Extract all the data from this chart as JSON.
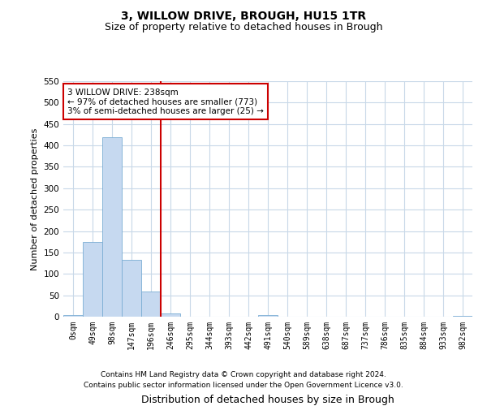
{
  "title_line1": "3, WILLOW DRIVE, BROUGH, HU15 1TR",
  "title_line2": "Size of property relative to detached houses in Brough",
  "xlabel": "Distribution of detached houses by size in Brough",
  "ylabel": "Number of detached properties",
  "bin_labels": [
    "0sqm",
    "49sqm",
    "98sqm",
    "147sqm",
    "196sqm",
    "246sqm",
    "295sqm",
    "344sqm",
    "393sqm",
    "442sqm",
    "491sqm",
    "540sqm",
    "589sqm",
    "638sqm",
    "687sqm",
    "737sqm",
    "786sqm",
    "835sqm",
    "884sqm",
    "933sqm",
    "982sqm"
  ],
  "bar_heights": [
    4,
    175,
    420,
    132,
    58,
    8,
    0,
    0,
    0,
    0,
    3,
    0,
    0,
    0,
    0,
    0,
    0,
    0,
    0,
    0,
    2
  ],
  "bar_color": "#c6d9f0",
  "bar_edge_color": "#7badd4",
  "property_line_bin": 5,
  "property_line_color": "#cc0000",
  "annotation_line1": "3 WILLOW DRIVE: 238sqm",
  "annotation_line2": "← 97% of detached houses are smaller (773)",
  "annotation_line3": "3% of semi-detached houses are larger (25) →",
  "annotation_box_color": "#ffffff",
  "annotation_box_edge": "#cc0000",
  "ylim": [
    0,
    550
  ],
  "yticks": [
    0,
    50,
    100,
    150,
    200,
    250,
    300,
    350,
    400,
    450,
    500,
    550
  ],
  "footer_line1": "Contains HM Land Registry data © Crown copyright and database right 2024.",
  "footer_line2": "Contains public sector information licensed under the Open Government Licence v3.0.",
  "background_color": "#ffffff",
  "grid_color": "#c8d8e8",
  "title1_fontsize": 10,
  "title2_fontsize": 9,
  "ylabel_fontsize": 8,
  "xlabel_fontsize": 9,
  "tick_fontsize": 7,
  "footer_fontsize": 6.5
}
